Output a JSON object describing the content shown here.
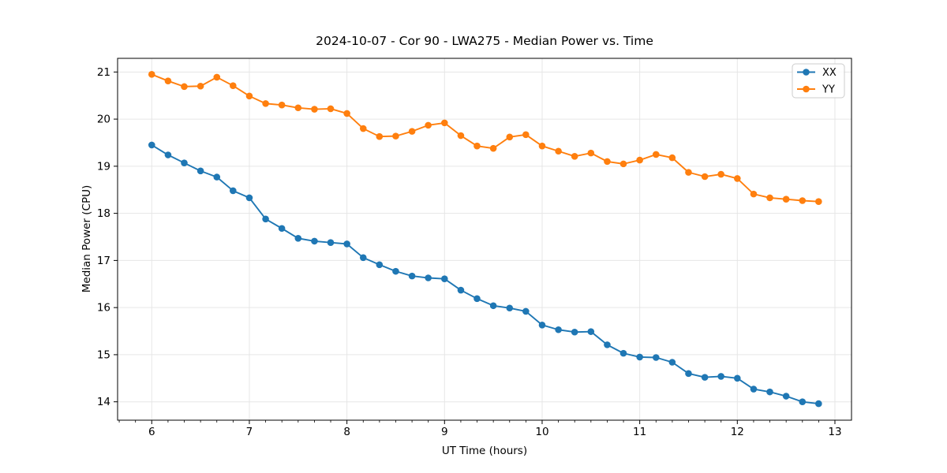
{
  "page": {
    "background_color": "#ffffff",
    "text_color": "#000000"
  },
  "chart_data": {
    "type": "line",
    "title": "2024-10-07 - Cor 90 - LWA275 - Median Power vs. Time",
    "xlabel": "UT Time (hours)",
    "ylabel": "Median Power (CPU)",
    "xlim": [
      5.65,
      13.17
    ],
    "ylim": [
      13.61,
      21.29
    ],
    "xticks": [
      6,
      7,
      8,
      9,
      10,
      11,
      12,
      13
    ],
    "yticks": [
      14,
      15,
      16,
      17,
      18,
      19,
      20,
      21
    ],
    "minor_xtick_step": 0.16667,
    "grid": true,
    "grid_color": "#e6e6e6",
    "spine_color": "#000000",
    "legend": {
      "position": "upper right",
      "entries": [
        "XX",
        "YY"
      ],
      "border_color": "#cccccc",
      "background_color": "#ffffff"
    },
    "x": [
      6.0,
      6.167,
      6.333,
      6.5,
      6.667,
      6.833,
      7.0,
      7.167,
      7.333,
      7.5,
      7.667,
      7.833,
      8.0,
      8.167,
      8.333,
      8.5,
      8.667,
      8.833,
      9.0,
      9.167,
      9.333,
      9.5,
      9.667,
      9.833,
      10.0,
      10.167,
      10.333,
      10.5,
      10.667,
      10.833,
      11.0,
      11.167,
      11.333,
      11.5,
      11.667,
      11.833,
      12.0,
      12.167,
      12.333,
      12.5,
      12.667,
      12.833
    ],
    "series": [
      {
        "name": "XX",
        "color": "#1f77b4",
        "marker": "circle",
        "values": [
          19.45,
          19.24,
          19.07,
          18.9,
          18.77,
          18.48,
          18.33,
          17.88,
          17.68,
          17.47,
          17.41,
          17.38,
          17.35,
          17.06,
          16.91,
          16.77,
          16.67,
          16.63,
          16.61,
          16.37,
          16.19,
          16.04,
          15.99,
          15.92,
          15.63,
          15.53,
          15.48,
          15.49,
          15.21,
          15.03,
          14.95,
          14.94,
          14.84,
          14.6,
          14.52,
          14.54,
          14.5,
          14.27,
          14.21,
          14.12,
          14.0,
          13.96
        ]
      },
      {
        "name": "YY",
        "color": "#ff7f0e",
        "marker": "circle",
        "values": [
          20.95,
          20.81,
          20.69,
          20.7,
          20.89,
          20.71,
          20.49,
          20.33,
          20.3,
          20.24,
          20.21,
          20.22,
          20.12,
          19.8,
          19.63,
          19.64,
          19.74,
          19.87,
          19.92,
          19.65,
          19.43,
          19.38,
          19.62,
          19.67,
          19.43,
          19.32,
          19.21,
          19.28,
          19.1,
          19.05,
          19.13,
          19.25,
          19.18,
          18.87,
          18.78,
          18.83,
          18.74,
          18.41,
          18.33,
          18.3,
          18.27,
          18.25
        ]
      }
    ]
  }
}
